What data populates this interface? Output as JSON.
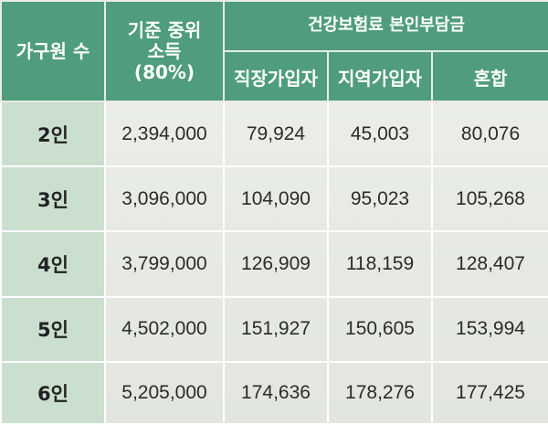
{
  "table": {
    "header": {
      "household_size": "가구원 수",
      "median_income_line1": "기준 중위",
      "median_income_line2": "소득",
      "median_income_line3": "(80%)",
      "premium_group": "건강보험료  본인부담금",
      "sub_headers": [
        "직장가입자",
        "지역가입자",
        "혼합"
      ]
    },
    "rows": [
      {
        "household": "2인",
        "income": "2,394,000",
        "employee": "79,924",
        "regional": "45,003",
        "mixed": "80,076"
      },
      {
        "household": "3인",
        "income": "3,096,000",
        "employee": "104,090",
        "regional": "95,023",
        "mixed": "105,268"
      },
      {
        "household": "4인",
        "income": "3,799,000",
        "employee": "126,909",
        "regional": "118,159",
        "mixed": "128,407"
      },
      {
        "household": "5인",
        "income": "4,502,000",
        "employee": "151,927",
        "regional": "150,605",
        "mixed": "153,994"
      },
      {
        "household": "6인",
        "income": "5,205,000",
        "employee": "174,636",
        "regional": "178,276",
        "mixed": "177,425"
      }
    ]
  }
}
